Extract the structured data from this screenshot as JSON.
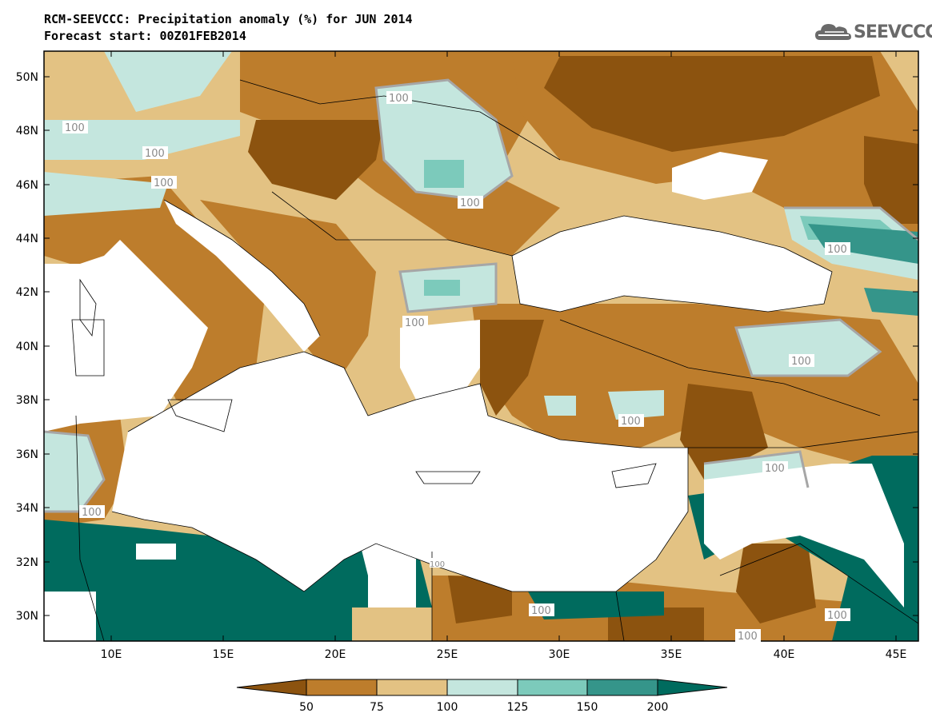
{
  "header": {
    "title": "RCM-SEEVCCC: Precipitation anomaly (%) for JUN 2014",
    "subtitle": "Forecast start: 00Z01FEB2014"
  },
  "logo": {
    "text": "SEEVCCC",
    "icon": "cloud-logo-icon"
  },
  "map": {
    "lat_labels": [
      "50N",
      "48N",
      "46N",
      "44N",
      "42N",
      "40N",
      "38N",
      "36N",
      "34N",
      "32N",
      "30N"
    ],
    "lon_labels": [
      "10E",
      "15E",
      "20E",
      "25E",
      "30E",
      "35E",
      "40E",
      "45E"
    ],
    "contour_labels": [
      "100",
      "100",
      "100",
      "100",
      "100",
      "100",
      "100",
      "100",
      "100",
      "100",
      "100",
      "100",
      "100",
      "100",
      "100"
    ]
  },
  "colorbar": {
    "labels": [
      "50",
      "75",
      "100",
      "125",
      "150",
      "200"
    ],
    "colors": [
      "#8c530f",
      "#bd7d2c",
      "#e3c283",
      "#c4e6de",
      "#7ccabb",
      "#35958a",
      "#006b5e"
    ]
  }
}
